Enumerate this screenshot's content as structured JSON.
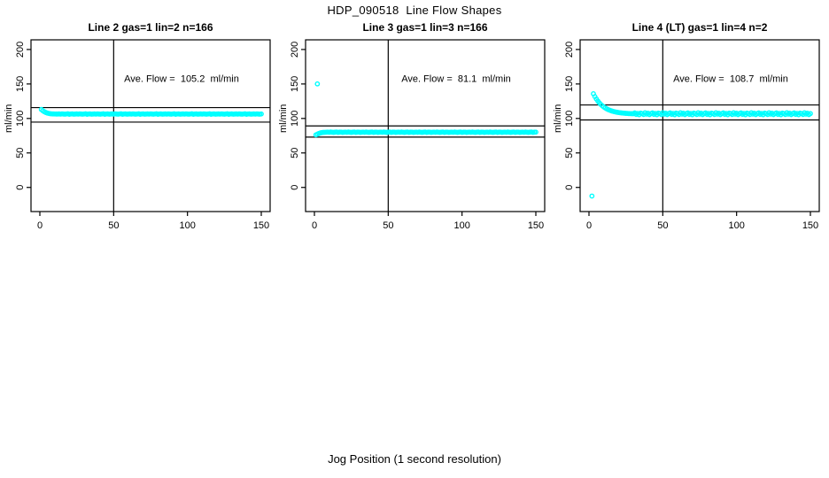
{
  "figure": {
    "title": "HDP_090518  Line Flow Shapes",
    "xlabel": "Jog Position (1 second resolution)",
    "point_color": "#00FFFF",
    "axis_color": "#000000",
    "background": "#FFFFFF"
  },
  "chart_data": [
    {
      "type": "scatter",
      "title": "Line 2 gas=1 lin=2 n=166",
      "annotation": "Ave. Flow =  105.2  ml/min",
      "ave_flow_ml_min": 105.2,
      "n": 166,
      "ylabel": "ml/min",
      "xticks": [
        0,
        50,
        100,
        150
      ],
      "yticks": [
        0,
        50,
        100,
        150,
        200
      ],
      "xlim": [
        -6,
        156
      ],
      "ylim": [
        -35,
        214
      ],
      "vline_x": 50,
      "hlines": [
        115.7,
        94.7
      ],
      "x_start": 1,
      "y": [
        113.0,
        111.2,
        109.8,
        108.7,
        107.9,
        107.3,
        106.9,
        106.7,
        106.6,
        106.5,
        106.4,
        106.4,
        106.6,
        106.3,
        106.7,
        106.4,
        106.2,
        106.5,
        106.8,
        106.1,
        106.5,
        106.6,
        106.2,
        106.4,
        106.6,
        106.3,
        106.7,
        106.4,
        106.2,
        106.5,
        106.8,
        106.1,
        106.5,
        106.6,
        106.2,
        106.4,
        106.6,
        106.3,
        106.7,
        106.4,
        106.2,
        106.5,
        106.8,
        106.1,
        106.5,
        106.6,
        106.2,
        106.4,
        106.6,
        106.3,
        106.7,
        106.4,
        106.2,
        106.5,
        106.8,
        106.1,
        106.5,
        106.6,
        106.2,
        106.4,
        106.6,
        106.3,
        106.7,
        106.4,
        106.2,
        106.5,
        106.8,
        106.1,
        106.5,
        106.6,
        106.2,
        106.4,
        106.6,
        106.3,
        106.7,
        106.4,
        106.2,
        106.5,
        106.8,
        106.1,
        106.5,
        106.6,
        106.2,
        106.4,
        106.6,
        106.3,
        106.7,
        106.4,
        106.2,
        106.5,
        106.8,
        106.1,
        106.5,
        106.6,
        106.2,
        106.4,
        106.6,
        106.3,
        106.7,
        106.4,
        106.2,
        106.5,
        106.8,
        106.1,
        106.5,
        106.6,
        106.2,
        106.4,
        106.6,
        106.3,
        106.7,
        106.4,
        106.2,
        106.5,
        106.8,
        106.1,
        106.5,
        106.6,
        106.2,
        106.4,
        106.6,
        106.3,
        106.7,
        106.4,
        106.2,
        106.5,
        106.8,
        106.1,
        106.5,
        106.6,
        106.2,
        106.4,
        106.6,
        106.3,
        106.7,
        106.4,
        106.2,
        106.5,
        106.8,
        106.1,
        106.5,
        106.6,
        106.2,
        106.4,
        106.6,
        106.3,
        106.7,
        106.4,
        106.2,
        106.5
      ],
      "outliers": []
    },
    {
      "type": "scatter",
      "title": "Line 3 gas=1 lin=3 n=166",
      "annotation": "Ave. Flow =  81.1  ml/min",
      "ave_flow_ml_min": 81.1,
      "n": 166,
      "ylabel": "ml/min",
      "xticks": [
        0,
        50,
        100,
        150
      ],
      "yticks": [
        0,
        50,
        100,
        150,
        200
      ],
      "xlim": [
        -6,
        156
      ],
      "ylim": [
        -35,
        214
      ],
      "vline_x": 50,
      "hlines": [
        89.2,
        73.0
      ],
      "x_start": 1,
      "y": [
        76.2,
        77.2,
        78.2,
        79.0,
        79.5,
        79.8,
        79.9,
        80.0,
        80.2,
        79.9,
        80.3,
        80.0,
        79.8,
        80.1,
        80.4,
        79.7,
        80.1,
        80.2,
        79.8,
        80.0,
        80.2,
        79.9,
        80.3,
        80.0,
        79.8,
        80.1,
        80.4,
        79.7,
        80.1,
        80.2,
        79.8,
        80.0,
        80.2,
        79.9,
        80.3,
        80.0,
        79.8,
        80.1,
        80.4,
        79.7,
        80.1,
        80.2,
        79.8,
        80.0,
        80.2,
        79.9,
        80.3,
        80.0,
        79.8,
        80.1,
        80.4,
        79.7,
        80.1,
        80.2,
        79.8,
        80.0,
        80.2,
        79.9,
        80.3,
        80.0,
        79.8,
        80.1,
        80.4,
        79.7,
        80.1,
        80.2,
        79.8,
        80.0,
        80.2,
        79.9,
        80.3,
        80.0,
        79.8,
        80.1,
        80.4,
        79.7,
        80.1,
        80.2,
        79.8,
        80.0,
        80.2,
        79.9,
        80.3,
        80.0,
        79.8,
        80.1,
        80.4,
        79.7,
        80.1,
        80.2,
        79.8,
        80.0,
        80.2,
        79.9,
        80.3,
        80.0,
        79.8,
        80.1,
        80.4,
        79.7,
        80.1,
        80.2,
        79.8,
        80.0,
        80.2,
        79.9,
        80.3,
        80.0,
        79.8,
        80.1,
        80.4,
        79.7,
        80.1,
        80.2,
        79.8,
        80.0,
        80.2,
        79.9,
        80.3,
        80.0,
        79.8,
        80.1,
        80.4,
        79.7,
        80.1,
        80.2,
        79.8,
        80.0,
        80.2,
        79.9,
        80.3,
        80.0,
        79.8,
        80.1,
        80.4,
        79.7,
        80.1,
        80.2,
        79.8,
        80.0,
        80.2,
        79.9,
        80.3,
        80.0,
        79.8,
        80.1,
        80.4,
        79.7,
        80.1,
        80.2
      ],
      "outliers": [
        [
          2,
          150.1
        ]
      ]
    },
    {
      "type": "scatter",
      "title": "Line 4 (LT) gas=1 lin=4 n=2",
      "annotation": "Ave. Flow =  108.7  ml/min",
      "ave_flow_ml_min": 108.7,
      "n": 2,
      "ylabel": "ml/min",
      "xticks": [
        0,
        50,
        100,
        150
      ],
      "yticks": [
        0,
        50,
        100,
        150,
        200
      ],
      "xlim": [
        -6,
        156
      ],
      "ylim": [
        -35,
        214
      ],
      "vline_x": 50,
      "hlines": [
        119.6,
        97.8
      ],
      "x_start": 3,
      "y": [
        135.8,
        131.7,
        128.2,
        125.2,
        122.6,
        120.3,
        118.4,
        116.7,
        115.3,
        114.0,
        112.9,
        112.0,
        111.2,
        110.5,
        109.9,
        109.4,
        109.0,
        108.6,
        108.3,
        108.0,
        107.8,
        107.6,
        107.4,
        107.3,
        107.1,
        107.0,
        106.9,
        106.9,
        108.0,
        106.0,
        107.3,
        105.4,
        107.7,
        107.0,
        105.7,
        108.3,
        106.3,
        107.6,
        105.6,
        107.1,
        108.0,
        106.0,
        107.3,
        105.4,
        107.7,
        107.0,
        105.7,
        108.3,
        106.3,
        107.6,
        105.6,
        107.1,
        108.0,
        106.0,
        107.3,
        105.4,
        107.7,
        107.0,
        105.7,
        108.3,
        106.3,
        107.6,
        105.6,
        107.1,
        108.0,
        106.0,
        107.3,
        105.4,
        107.7,
        107.0,
        105.7,
        108.3,
        106.3,
        107.6,
        105.6,
        107.1,
        108.0,
        106.0,
        107.3,
        105.4,
        107.7,
        107.0,
        105.7,
        108.3,
        106.3,
        107.6,
        105.6,
        107.1,
        108.0,
        106.0,
        107.3,
        105.4,
        107.7,
        107.0,
        105.7,
        108.3,
        106.3,
        107.6,
        105.6,
        107.1,
        108.0,
        106.0,
        107.3,
        105.4,
        107.7,
        107.0,
        105.7,
        108.3,
        106.3,
        107.6,
        105.6,
        107.1,
        108.0,
        106.0,
        107.3,
        105.4,
        107.7,
        107.0,
        105.7,
        108.3,
        106.3,
        107.6,
        105.6,
        107.1,
        108.0,
        106.0,
        107.3,
        105.4,
        107.7,
        107.0,
        105.7,
        108.3,
        106.3,
        107.6,
        105.6,
        107.1,
        108.0,
        106.0,
        107.3,
        105.4,
        107.7,
        107.0,
        105.7,
        108.3,
        106.3,
        107.6,
        105.6,
        107.1
      ],
      "outliers": [
        [
          2,
          -12.5
        ]
      ]
    }
  ]
}
